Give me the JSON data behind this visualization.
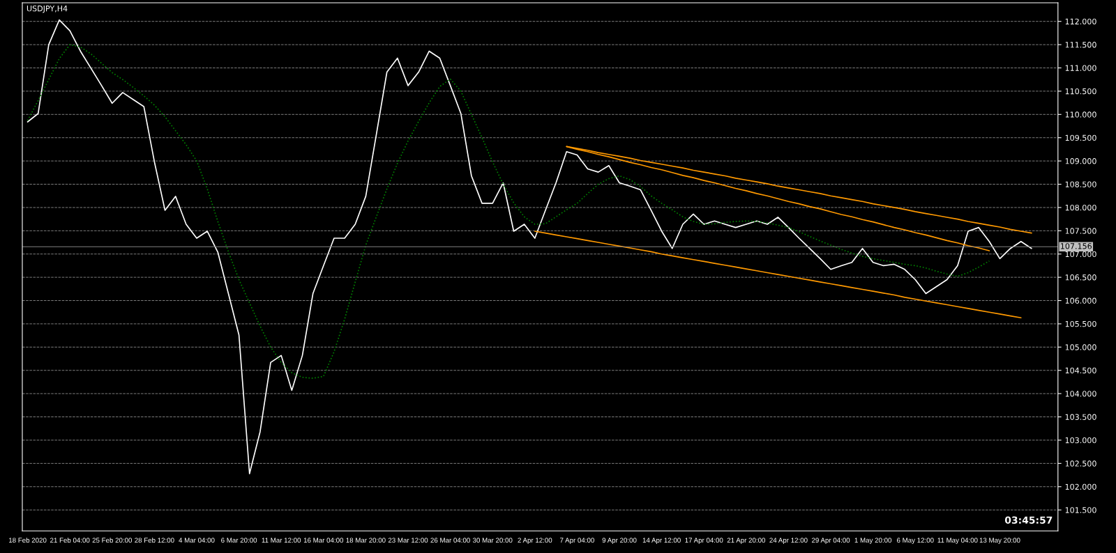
{
  "chart_data": {
    "type": "line",
    "title": "USDJPY,H4",
    "annotations": [
      "03:45:57"
    ],
    "categories": [
      "18 Feb 2020",
      null,
      null,
      null,
      "21 Feb 04:00",
      null,
      null,
      null,
      "25 Feb 20:00",
      null,
      null,
      null,
      "28 Feb 12:00",
      null,
      null,
      null,
      "4 Mar 04:00",
      null,
      null,
      null,
      "6 Mar 20:00",
      null,
      null,
      null,
      "11 Mar 12:00",
      null,
      null,
      null,
      "16 Mar 04:00",
      null,
      null,
      null,
      "18 Mar 20:00",
      null,
      null,
      null,
      "23 Mar 12:00",
      null,
      null,
      null,
      "26 Mar 04:00",
      null,
      null,
      null,
      "30 Mar 20:00",
      null,
      null,
      null,
      "2 Apr 12:00",
      null,
      null,
      null,
      "7 Apr 04:00",
      null,
      null,
      null,
      "9 Apr 20:00",
      null,
      null,
      null,
      "14 Apr 12:00",
      null,
      null,
      null,
      "17 Apr 04:00",
      null,
      null,
      null,
      "21 Apr 20:00",
      null,
      null,
      null,
      "24 Apr 12:00",
      null,
      null,
      null,
      "29 Apr 04:00",
      null,
      null,
      null,
      "1 May 20:00",
      null,
      null,
      null,
      "6 May 12:00",
      null,
      null,
      null,
      "11 May 04:00",
      null,
      null,
      null,
      "13 May 20:00",
      null,
      null,
      null
    ],
    "series": [
      {
        "color": "#ffffff",
        "line_style": "solid",
        "values": [
          109.84,
          110.02,
          111.5,
          112.03,
          111.8,
          111.36,
          110.99,
          110.62,
          110.24,
          110.47,
          110.32,
          110.17,
          108.98,
          107.94,
          108.24,
          107.64,
          107.34,
          107.49,
          107.04,
          106.15,
          105.26,
          102.28,
          103.18,
          104.67,
          104.82,
          104.07,
          104.82,
          106.15,
          106.75,
          107.34,
          107.34,
          107.64,
          108.24,
          109.57,
          110.91,
          111.21,
          110.62,
          110.91,
          111.36,
          111.21,
          110.62,
          110.02,
          108.68,
          108.09,
          108.09,
          108.53,
          107.49,
          107.64,
          107.34,
          107.94,
          108.53,
          109.2,
          109.13,
          108.83,
          108.76,
          108.9,
          108.53,
          108.46,
          108.38,
          107.94,
          107.49,
          107.12,
          107.64,
          107.86,
          107.64,
          107.71,
          107.64,
          107.57,
          107.64,
          107.71,
          107.64,
          107.79,
          107.57,
          107.34,
          107.12,
          106.9,
          106.67,
          106.75,
          106.82,
          107.12,
          106.82,
          106.75,
          106.78,
          106.67,
          106.45,
          106.15,
          106.3,
          106.45,
          106.75,
          107.49,
          107.57,
          107.27,
          106.9,
          107.12,
          107.27,
          107.12
        ]
      },
      {
        "color": "#008000",
        "line_style": "dotted",
        "values": [
          109.87,
          110.3,
          110.75,
          111.2,
          111.5,
          111.45,
          111.3,
          111.1,
          110.9,
          110.75,
          110.58,
          110.4,
          110.2,
          109.95,
          109.65,
          109.35,
          109.0,
          108.4,
          107.7,
          107.05,
          106.45,
          105.95,
          105.45,
          105.0,
          104.67,
          104.45,
          104.35,
          104.33,
          104.37,
          104.9,
          105.6,
          106.4,
          107.19,
          107.8,
          108.4,
          108.95,
          109.43,
          109.85,
          110.25,
          110.6,
          110.76,
          110.5,
          110.0,
          109.5,
          108.98,
          108.5,
          108.1,
          107.8,
          107.64,
          107.65,
          107.8,
          107.95,
          108.09,
          108.3,
          108.5,
          108.62,
          108.68,
          108.6,
          108.45,
          108.25,
          108.09,
          107.95,
          107.8,
          107.7,
          107.64,
          107.65,
          107.68,
          107.7,
          107.71,
          107.7,
          107.67,
          107.62,
          107.57,
          107.48,
          107.38,
          107.28,
          107.19,
          107.1,
          107.02,
          106.95,
          106.9,
          106.86,
          106.82,
          106.78,
          106.75,
          106.7,
          106.63,
          106.57,
          106.52,
          106.6,
          106.72,
          106.85,
          null,
          null,
          null,
          null
        ]
      },
      {
        "color": "#ff9900",
        "line_style": "solid",
        "values": [
          null,
          null,
          null,
          null,
          null,
          null,
          null,
          null,
          null,
          null,
          null,
          null,
          null,
          null,
          null,
          null,
          null,
          null,
          null,
          null,
          null,
          null,
          null,
          null,
          null,
          null,
          null,
          null,
          null,
          null,
          null,
          null,
          null,
          null,
          null,
          null,
          null,
          null,
          null,
          null,
          null,
          null,
          null,
          null,
          null,
          null,
          null,
          null,
          null,
          null,
          null,
          109.31,
          109.27,
          109.23,
          109.18,
          109.14,
          109.1,
          109.06,
          109.01,
          108.97,
          108.93,
          108.89,
          108.85,
          108.8,
          108.76,
          108.72,
          108.68,
          108.63,
          108.59,
          108.55,
          108.51,
          108.46,
          108.42,
          108.38,
          108.34,
          108.3,
          108.25,
          108.21,
          108.17,
          108.13,
          108.08,
          108.04,
          108.0,
          107.96,
          107.91,
          107.87,
          107.83,
          107.79,
          107.75,
          107.7,
          107.66,
          107.62,
          107.58,
          107.53,
          107.49,
          107.45
        ]
      },
      {
        "color": "#ff9900",
        "line_style": "solid",
        "values": [
          null,
          null,
          null,
          null,
          null,
          null,
          null,
          null,
          null,
          null,
          null,
          null,
          null,
          null,
          null,
          null,
          null,
          null,
          null,
          null,
          null,
          null,
          null,
          null,
          null,
          null,
          null,
          null,
          null,
          null,
          null,
          null,
          null,
          null,
          null,
          null,
          null,
          null,
          null,
          null,
          null,
          null,
          null,
          null,
          null,
          null,
          null,
          null,
          null,
          null,
          null,
          109.31,
          109.25,
          109.2,
          109.14,
          109.09,
          109.03,
          108.97,
          108.92,
          108.86,
          108.81,
          108.75,
          108.69,
          108.64,
          108.58,
          108.53,
          108.47,
          108.41,
          108.36,
          108.3,
          108.25,
          108.19,
          108.13,
          108.08,
          108.02,
          107.97,
          107.91,
          107.85,
          107.8,
          107.74,
          107.69,
          107.63,
          107.57,
          107.52,
          107.46,
          107.41,
          107.35,
          107.29,
          107.24,
          107.18,
          107.13,
          107.07,
          null,
          null,
          null,
          null
        ]
      },
      {
        "color": "#ff9900",
        "line_style": "solid",
        "values": [
          null,
          null,
          null,
          null,
          null,
          null,
          null,
          null,
          null,
          null,
          null,
          null,
          null,
          null,
          null,
          null,
          null,
          null,
          null,
          null,
          null,
          null,
          null,
          null,
          null,
          null,
          null,
          null,
          null,
          null,
          null,
          null,
          null,
          null,
          null,
          null,
          null,
          null,
          null,
          null,
          null,
          null,
          null,
          null,
          null,
          null,
          null,
          null,
          107.49,
          107.45,
          107.41,
          107.37,
          107.33,
          107.29,
          107.25,
          107.21,
          107.17,
          107.13,
          107.09,
          107.05,
          107.0,
          106.96,
          106.92,
          106.88,
          106.84,
          106.8,
          106.76,
          106.72,
          106.68,
          106.64,
          106.6,
          106.56,
          106.52,
          106.48,
          106.44,
          106.4,
          106.36,
          106.32,
          106.28,
          106.24,
          106.2,
          106.16,
          106.12,
          106.07,
          106.03,
          105.99,
          105.95,
          105.91,
          105.87,
          105.83,
          105.79,
          105.75,
          105.71,
          105.67,
          105.63,
          null
        ]
      }
    ],
    "ylim": [
      101.05,
      112.4
    ],
    "yticks": [
      {
        "value": 101.5,
        "label": "101.500"
      },
      {
        "value": 102,
        "label": "102.000"
      },
      {
        "value": 102.5,
        "label": "102.500"
      },
      {
        "value": 103,
        "label": "103.000"
      },
      {
        "value": 103.5,
        "label": "103.500"
      },
      {
        "value": 104,
        "label": "104.000"
      },
      {
        "value": 104.5,
        "label": "104.500"
      },
      {
        "value": 105,
        "label": "105.000"
      },
      {
        "value": 105.5,
        "label": "105.500"
      },
      {
        "value": 106,
        "label": "106.000"
      },
      {
        "value": 106.5,
        "label": "106.500"
      },
      {
        "value": 107,
        "label": "107.000"
      },
      {
        "value": 107.5,
        "label": "107.500"
      },
      {
        "value": 108,
        "label": "108.000"
      },
      {
        "value": 108.5,
        "label": "108.500"
      },
      {
        "value": 109,
        "label": "109.000"
      },
      {
        "value": 109.5,
        "label": "109.500"
      },
      {
        "value": 110,
        "label": "110.000"
      },
      {
        "value": 110.5,
        "label": "110.500"
      },
      {
        "value": 111,
        "label": "111.000"
      },
      {
        "value": 111.5,
        "label": "111.500"
      },
      {
        "value": 112,
        "label": "112.000"
      }
    ],
    "ref_lines": [
      {
        "axis": "y",
        "value": 107.156,
        "label": "107.156",
        "color": "#808080",
        "line_style": "solid"
      }
    ],
    "grid": "y",
    "legend": false,
    "marker": "none"
  }
}
